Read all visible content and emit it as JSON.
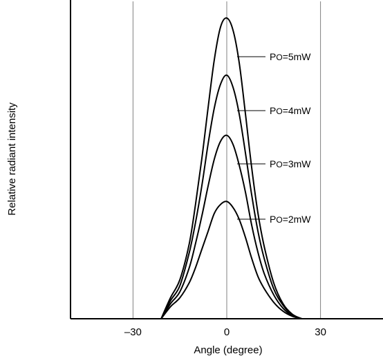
{
  "chart_data": {
    "type": "line",
    "title": "",
    "xlabel": "Angle (degree)",
    "ylabel": "Relative radiant intensity",
    "xlim": [
      -50,
      50
    ],
    "ylim": [
      0,
      1.06
    ],
    "xticks": [
      -30,
      0,
      30
    ],
    "xtick_labels": [
      "–30",
      "0",
      "30"
    ],
    "grid": "vertical lines at x = -30, 0, 30",
    "y_tick_labels": "none",
    "series": [
      {
        "label_parts": [
          "P",
          "O",
          "=5mW"
        ],
        "x": [
          -21,
          -18,
          -15,
          -12,
          -10,
          -8,
          -6,
          -4,
          -2,
          0,
          2,
          4,
          6,
          8,
          10,
          12,
          15,
          18,
          21,
          24
        ],
        "y": [
          0.0,
          0.07,
          0.13,
          0.25,
          0.38,
          0.53,
          0.7,
          0.86,
          0.97,
          1.0,
          0.96,
          0.85,
          0.68,
          0.5,
          0.35,
          0.24,
          0.12,
          0.05,
          0.015,
          0.0
        ]
      },
      {
        "label_parts": [
          "P",
          "O",
          "=4mW"
        ],
        "x": [
          -21,
          -18,
          -15,
          -12,
          -10,
          -8,
          -6,
          -4,
          -2,
          0,
          2,
          4,
          6,
          8,
          10,
          12,
          15,
          18,
          21,
          24
        ],
        "y": [
          0.0,
          0.06,
          0.11,
          0.22,
          0.32,
          0.44,
          0.58,
          0.7,
          0.78,
          0.81,
          0.77,
          0.68,
          0.55,
          0.41,
          0.29,
          0.2,
          0.1,
          0.045,
          0.012,
          0.0
        ]
      },
      {
        "label_parts": [
          "P",
          "O",
          "=3mW"
        ],
        "x": [
          -21,
          -18,
          -15,
          -12,
          -10,
          -8,
          -6,
          -4,
          -2,
          0,
          2,
          4,
          6,
          8,
          10,
          12,
          15,
          18,
          21,
          24
        ],
        "y": [
          0.0,
          0.05,
          0.09,
          0.17,
          0.25,
          0.34,
          0.44,
          0.53,
          0.59,
          0.61,
          0.58,
          0.51,
          0.42,
          0.31,
          0.22,
          0.15,
          0.08,
          0.035,
          0.01,
          0.0
        ]
      },
      {
        "label_parts": [
          "P",
          "O",
          "=2mW"
        ],
        "x": [
          -21,
          -18,
          -15,
          -12,
          -10,
          -8,
          -6,
          -4,
          -2,
          0,
          2,
          4,
          6,
          8,
          10,
          12,
          15,
          18,
          21,
          24
        ],
        "y": [
          0.0,
          0.04,
          0.07,
          0.12,
          0.17,
          0.23,
          0.29,
          0.35,
          0.38,
          0.39,
          0.37,
          0.33,
          0.27,
          0.2,
          0.14,
          0.1,
          0.055,
          0.025,
          0.008,
          0.0
        ]
      }
    ],
    "colors": {
      "line": "#000000",
      "grid": "#808080",
      "background": "#ffffff"
    }
  }
}
